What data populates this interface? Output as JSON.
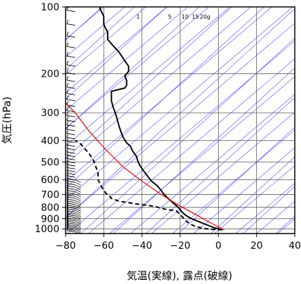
{
  "chart_data": {
    "type": "line",
    "title": "",
    "xlabel": "気温(実線), 露点(破線)",
    "ylabel": "気圧(hPa)",
    "xlim": [
      -80,
      40
    ],
    "ylim": [
      1050,
      100
    ],
    "y_scale": "log",
    "x_ticks": [
      "−80",
      "−60",
      "−40",
      "−20",
      "0",
      "20",
      "40"
    ],
    "x_tick_values": [
      -80,
      -60,
      -40,
      -20,
      0,
      20,
      40
    ],
    "y_ticks": [
      "100",
      "200",
      "300",
      "400",
      "500",
      "600",
      "700",
      "800",
      "900",
      "1000"
    ],
    "y_tick_values": [
      100,
      200,
      300,
      400,
      500,
      600,
      700,
      800,
      900,
      1000
    ],
    "mixing_ratio_labels": [
      "1",
      "5",
      "10",
      "15",
      "20g"
    ],
    "mixing_ratio_values": [
      1,
      5,
      10,
      15,
      20
    ],
    "series": [
      {
        "style": "solid",
        "color": "#000000",
        "points": [
          [
            2,
            1010
          ],
          [
            -2,
            990
          ],
          [
            -6,
            960
          ],
          [
            -10,
            930
          ],
          [
            -14,
            900
          ],
          [
            -17,
            870
          ],
          [
            -19,
            840
          ],
          [
            -21,
            800
          ],
          [
            -24,
            760
          ],
          [
            -27,
            720
          ],
          [
            -29,
            690
          ],
          [
            -30,
            670
          ],
          [
            -32,
            640
          ],
          [
            -35,
            610
          ],
          [
            -37,
            580
          ],
          [
            -39,
            550
          ],
          [
            -41,
            520
          ],
          [
            -42,
            500
          ],
          [
            -43,
            470
          ],
          [
            -45,
            445
          ],
          [
            -46,
            425
          ],
          [
            -48,
            410
          ],
          [
            -50,
            385
          ],
          [
            -51,
            365
          ],
          [
            -52,
            345
          ],
          [
            -53,
            320
          ],
          [
            -54,
            300
          ],
          [
            -55,
            285
          ],
          [
            -56,
            265
          ],
          [
            -56,
            250
          ],
          [
            -56,
            240
          ],
          [
            -49,
            232
          ],
          [
            -48,
            225
          ],
          [
            -48,
            215
          ],
          [
            -49,
            205
          ],
          [
            -47,
            195
          ],
          [
            -47,
            185
          ],
          [
            -49,
            175
          ],
          [
            -52,
            160
          ],
          [
            -55,
            150
          ],
          [
            -58,
            140
          ],
          [
            -58,
            130
          ],
          [
            -60,
            120
          ],
          [
            -60,
            110
          ],
          [
            -62,
            102
          ],
          [
            -62,
            100
          ]
        ]
      },
      {
        "style": "dashed",
        "color": "#000000",
        "points": [
          [
            2,
            1010
          ],
          [
            -4,
            1005
          ],
          [
            -8,
            995
          ],
          [
            -12,
            975
          ],
          [
            -15,
            950
          ],
          [
            -17,
            920
          ],
          [
            -19,
            880
          ],
          [
            -22,
            830
          ],
          [
            -28,
            815
          ],
          [
            -34,
            790
          ],
          [
            -44,
            770
          ],
          [
            -52,
            750
          ],
          [
            -56,
            730
          ],
          [
            -57,
            710
          ],
          [
            -59,
            690
          ],
          [
            -61,
            650
          ],
          [
            -63,
            600
          ],
          [
            -63,
            560
          ],
          [
            -64,
            530
          ],
          [
            -65,
            500
          ],
          [
            -66,
            480
          ],
          [
            -68,
            455
          ],
          [
            -70,
            435
          ],
          [
            -72,
            415
          ],
          [
            -75,
            400
          ]
        ]
      },
      {
        "style": "solid",
        "color": "#e00000",
        "points": [
          [
            3,
            1010
          ],
          [
            -5,
            930
          ],
          [
            -12,
            860
          ],
          [
            -20,
            790
          ],
          [
            -30,
            700
          ],
          [
            -40,
            610
          ],
          [
            -50,
            525
          ],
          [
            -60,
            430
          ],
          [
            -68,
            360
          ],
          [
            -75,
            300
          ],
          [
            -80,
            270
          ]
        ]
      }
    ]
  }
}
